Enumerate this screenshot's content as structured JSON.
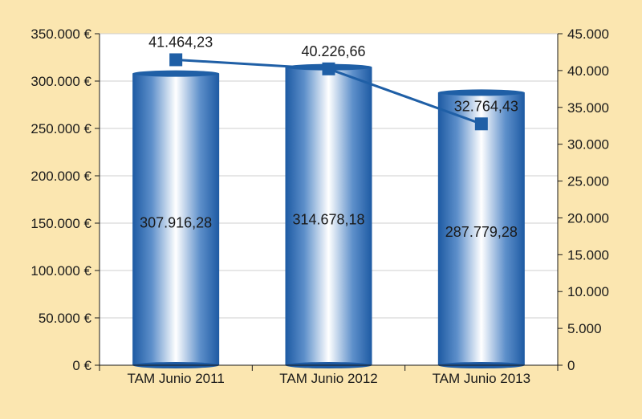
{
  "chart_data": {
    "type": "bar",
    "categories": [
      "TAM Junio 2011",
      "TAM Junio 2012",
      "TAM Junio 2013"
    ],
    "series": [
      {
        "type": "bar",
        "axis": "left",
        "values": [
          307916.28,
          314678.18,
          287779.28
        ],
        "labels": [
          "307.916,28",
          "314.678,18",
          "287.779,28"
        ],
        "color": "#1f5fa6"
      },
      {
        "type": "line",
        "axis": "right",
        "values": [
          41464.23,
          40226.66,
          32764.43
        ],
        "labels": [
          "41.464,23",
          "40.226,66",
          "32.764,43"
        ],
        "color": "#1f5fa6"
      }
    ],
    "y_left": {
      "ylim": [
        0,
        350000
      ],
      "ticks": [
        "0 €",
        "50.000 €",
        "100.000 €",
        "150.000 €",
        "200.000 €",
        "250.000 €",
        "300.000 €",
        "350.000 €"
      ]
    },
    "y_right": {
      "ylim": [
        0,
        45000
      ],
      "ticks": [
        "0",
        "5.000",
        "10.000",
        "15.000",
        "20.000",
        "25.000",
        "30.000",
        "35.000",
        "40.000",
        "45.000"
      ]
    },
    "grid": true,
    "legend": "none",
    "background": "#fbe6b0",
    "plot_background": "#ffffff"
  }
}
